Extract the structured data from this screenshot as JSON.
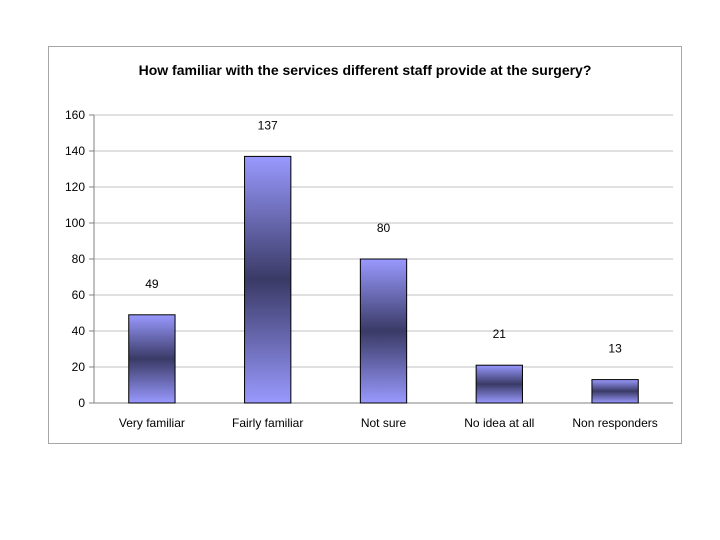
{
  "chart_data": {
    "type": "bar",
    "title": "How familiar with the services different staff provide at the surgery?",
    "categories": [
      "Very familiar",
      "Fairly familiar",
      "Not sure",
      "No idea at all",
      "Non responders"
    ],
    "values": [
      49,
      137,
      80,
      21,
      13
    ],
    "ylim": [
      0,
      160
    ],
    "yticks": [
      0,
      20,
      40,
      60,
      80,
      100,
      120,
      140,
      160
    ],
    "grid": true,
    "legend": "none",
    "colors": {
      "bar_light": "#9999ff",
      "bar_dark": "#3a3a66",
      "grid": "#c0c0c0",
      "axis": "#808080"
    }
  }
}
